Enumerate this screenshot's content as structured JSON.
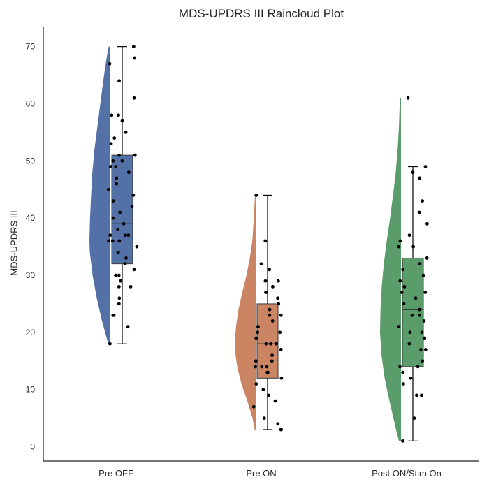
{
  "chart_data": {
    "type": "raincloud",
    "title": "MDS-UPDRS III Raincloud Plot",
    "xlabel": "",
    "ylabel": "MDS-UPDRS III",
    "ylim": [
      -2.5,
      73.5
    ],
    "yticks": [
      0,
      10,
      20,
      30,
      40,
      50,
      60,
      70
    ],
    "grid": false,
    "categories": [
      "Pre OFF",
      "Pre ON",
      "Post ON/Stim On"
    ],
    "series": [
      {
        "color": "#5471a7",
        "box": {
          "min": 18,
          "q1": 32,
          "median": 39,
          "q3": 51,
          "max": 70
        },
        "points": [
          70,
          68,
          67,
          64,
          61,
          58,
          58,
          57,
          55,
          54,
          53,
          51,
          51,
          50,
          50,
          49,
          49,
          48,
          47,
          46,
          45,
          44,
          43,
          42,
          41,
          40,
          39,
          38,
          37,
          37,
          37,
          36,
          36,
          36,
          35,
          34,
          33,
          32,
          31,
          30,
          30,
          29,
          28,
          28,
          26,
          25,
          23,
          23,
          21,
          18
        ],
        "density": [
          [
            18,
            0.1
          ],
          [
            22,
            0.4
          ],
          [
            26,
            0.65
          ],
          [
            30,
            0.85
          ],
          [
            34,
            0.98
          ],
          [
            36,
            1.0
          ],
          [
            40,
            0.97
          ],
          [
            44,
            0.92
          ],
          [
            48,
            0.86
          ],
          [
            52,
            0.76
          ],
          [
            56,
            0.62
          ],
          [
            60,
            0.48
          ],
          [
            64,
            0.34
          ],
          [
            68,
            0.18
          ],
          [
            70,
            0.08
          ]
        ]
      },
      {
        "color": "#cc8563",
        "box": {
          "min": 3,
          "q1": 12,
          "median": 18,
          "q3": 25,
          "max": 44
        },
        "points": [
          44,
          36,
          32,
          31,
          29,
          29,
          28,
          27,
          26,
          25,
          24,
          23,
          23,
          22,
          21,
          21,
          20,
          20,
          19,
          18,
          18,
          18,
          17,
          16,
          15,
          15,
          14,
          14,
          14,
          13,
          13,
          12,
          11,
          10,
          9,
          8,
          7,
          5,
          4,
          3,
          3
        ],
        "density": [
          [
            3,
            0.05
          ],
          [
            5,
            0.15
          ],
          [
            8,
            0.4
          ],
          [
            11,
            0.68
          ],
          [
            14,
            0.88
          ],
          [
            16,
            0.96
          ],
          [
            18,
            1.0
          ],
          [
            21,
            0.94
          ],
          [
            24,
            0.82
          ],
          [
            27,
            0.64
          ],
          [
            30,
            0.44
          ],
          [
            33,
            0.28
          ],
          [
            36,
            0.16
          ],
          [
            40,
            0.09
          ],
          [
            44,
            0.03
          ]
        ]
      },
      {
        "color": "#5a9d6a",
        "box": {
          "min": 1,
          "q1": 14,
          "median": 24,
          "q3": 33,
          "max": 49
        },
        "points": [
          61,
          49,
          48,
          47,
          43,
          41,
          39,
          37,
          36,
          35,
          35,
          33,
          32,
          31,
          30,
          29,
          28,
          27,
          27,
          26,
          25,
          24,
          23,
          23,
          22,
          21,
          20,
          20,
          19,
          18,
          17,
          17,
          15,
          14,
          14,
          13,
          12,
          11,
          9,
          9,
          5,
          1
        ],
        "density": [
          [
            1,
            0.1
          ],
          [
            4,
            0.3
          ],
          [
            8,
            0.55
          ],
          [
            12,
            0.78
          ],
          [
            16,
            0.93
          ],
          [
            20,
            1.0
          ],
          [
            24,
            0.98
          ],
          [
            28,
            0.92
          ],
          [
            32,
            0.82
          ],
          [
            36,
            0.68
          ],
          [
            40,
            0.52
          ],
          [
            44,
            0.38
          ],
          [
            48,
            0.25
          ],
          [
            52,
            0.16
          ],
          [
            56,
            0.1
          ],
          [
            61,
            0.05
          ]
        ]
      }
    ]
  }
}
